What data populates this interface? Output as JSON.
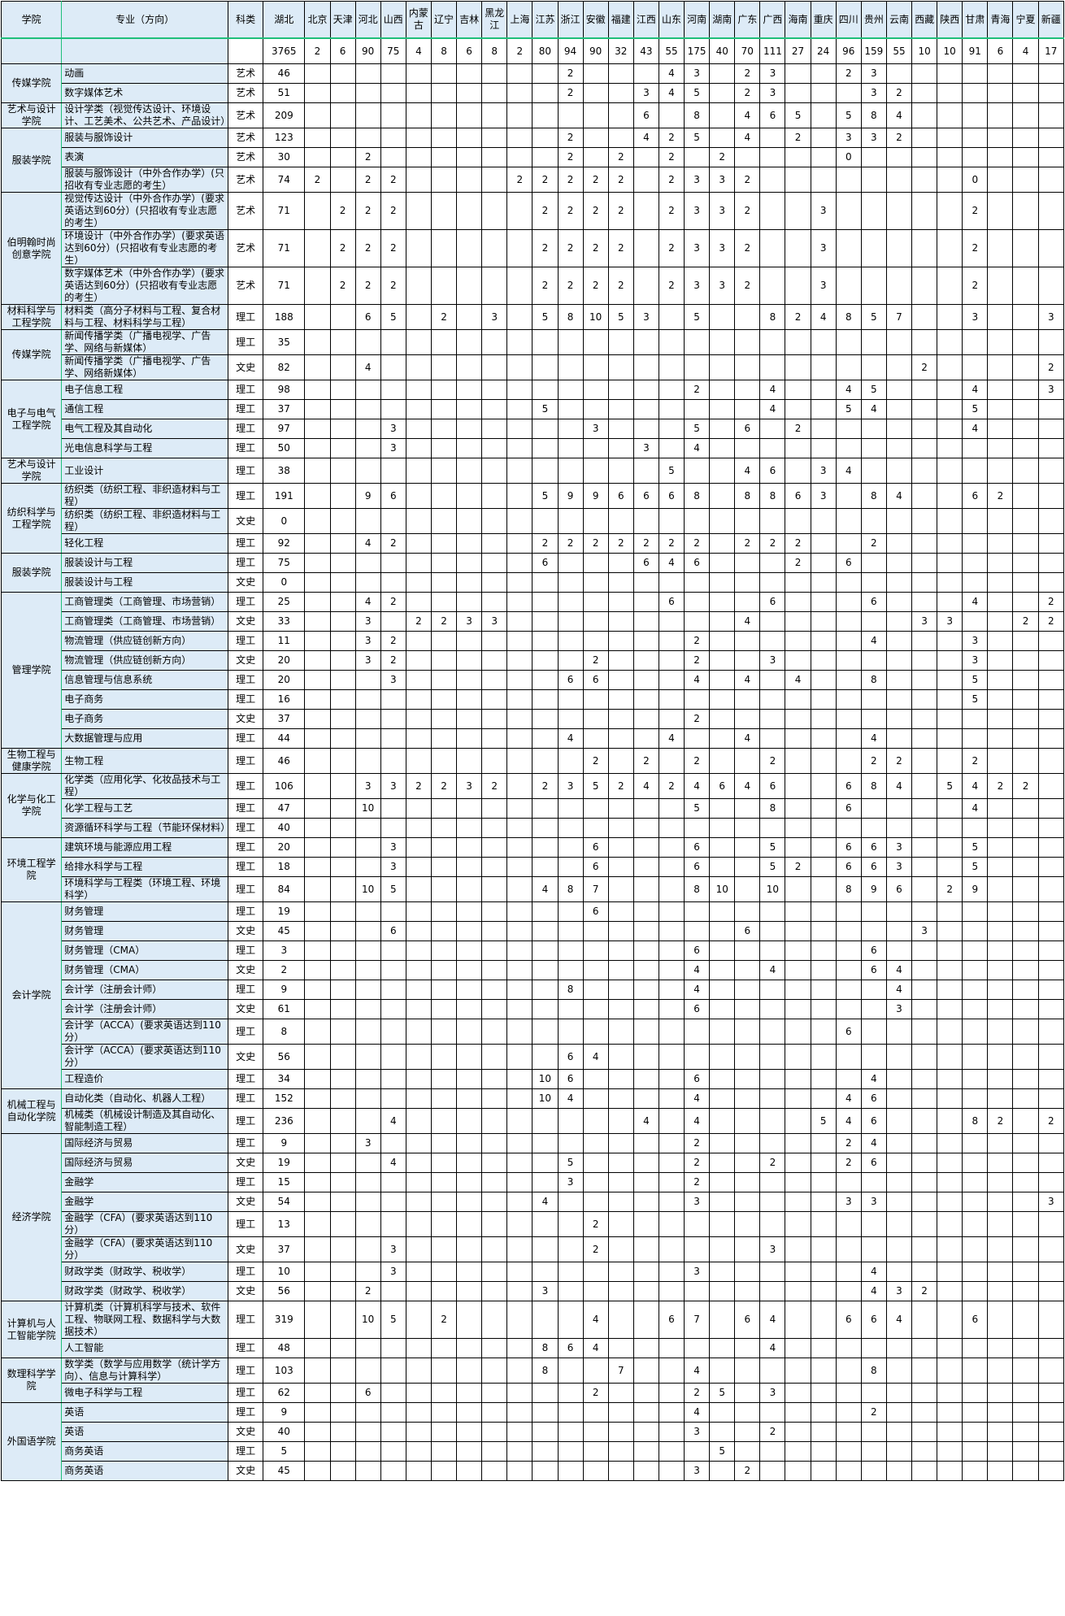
{
  "headers": {
    "college": "学院",
    "major": "专业（方向）",
    "type": "科类",
    "hubei": "湖北"
  },
  "provinces": [
    "北京",
    "天津",
    "河北",
    "山西",
    "内蒙古",
    "辽宁",
    "吉林",
    "黑龙江",
    "上海",
    "江苏",
    "浙江",
    "安徽",
    "福建",
    "江西",
    "山东",
    "河南",
    "湖南",
    "广东",
    "广西",
    "海南",
    "重庆",
    "四川",
    "贵州",
    "云南",
    "西藏",
    "陕西",
    "甘肃",
    "青海",
    "宁夏",
    "新疆"
  ],
  "totals": {
    "hubei": "3765",
    "values": {
      "北京": 2,
      "天津": 6,
      "河北": 90,
      "山西": 75,
      "内蒙古": 4,
      "辽宁": 8,
      "吉林": 6,
      "黑龙江": 8,
      "上海": 2,
      "江苏": 80,
      "浙江": 94,
      "安徽": 90,
      "福建": 32,
      "江西": 43,
      "山东": 55,
      "河南": 175,
      "湖南": 40,
      "广东": 70,
      "广西": 111,
      "海南": 27,
      "重庆": 24,
      "四川": 96,
      "贵州": 159,
      "云南": 55,
      "西藏": 10,
      "陕西": 10,
      "甘肃": 91,
      "青海": 6,
      "宁夏": 4,
      "新疆": 17
    }
  },
  "groups": [
    {
      "college": "传媒学院",
      "rows": [
        {
          "major": "动画",
          "type": "艺术",
          "hubei": "46",
          "v": {
            "浙江": 2,
            "山东": 4,
            "河南": 3,
            "广东": 2,
            "广西": 3,
            "四川": 2,
            "贵州": 3
          }
        },
        {
          "major": "数字媒体艺术",
          "type": "艺术",
          "hubei": "51",
          "v": {
            "浙江": 2,
            "江西": 3,
            "山东": 4,
            "河南": 5,
            "广东": 2,
            "广西": 3,
            "贵州": 3,
            "云南": 2
          }
        }
      ]
    },
    {
      "college": "艺术与设计学院",
      "rows": [
        {
          "major": "设计学类（视觉传达设计、环境设计、工艺美术、公共艺术、产品设计）",
          "type": "艺术",
          "hubei": "209",
          "v": {
            "江西": 6,
            "河南": 8,
            "广东": 4,
            "广西": 6,
            "海南": 5,
            "四川": 5,
            "贵州": 8,
            "云南": 4
          }
        }
      ]
    },
    {
      "college": "服装学院",
      "rows": [
        {
          "major": "服装与服饰设计",
          "type": "艺术",
          "hubei": "123",
          "v": {
            "浙江": 2,
            "江西": 4,
            "山东": 2,
            "河南": 5,
            "广东": 4,
            "海南": 2,
            "四川": 3,
            "贵州": 3,
            "云南": 2
          }
        },
        {
          "major": "表演",
          "type": "艺术",
          "hubei": "30",
          "v": {
            "河北": 2,
            "浙江": 2,
            "福建": 2,
            "山东": 2,
            "湖南": 2,
            "四川": 0
          }
        },
        {
          "major": "服装与服饰设计（中外合作办学）(只招收有专业志愿的考生）",
          "type": "艺术",
          "hubei": "74",
          "v": {
            "北京": 2,
            "河北": 2,
            "山西": 2,
            "上海": 2,
            "江苏": 2,
            "浙江": 2,
            "安徽": 2,
            "福建": 2,
            "山东": 2,
            "河南": 3,
            "湖南": 3,
            "广东": 2,
            "甘肃": 0
          }
        }
      ]
    },
    {
      "college": "伯明翰时尚创意学院",
      "rows": [
        {
          "major": "视觉传达设计（中外合作办学）(要求英语达到60分）(只招收有专业志愿的考生）",
          "type": "艺术",
          "hubei": "71",
          "v": {
            "天津": 2,
            "河北": 2,
            "山西": 2,
            "江苏": 2,
            "浙江": 2,
            "安徽": 2,
            "福建": 2,
            "山东": 2,
            "河南": 3,
            "湖南": 3,
            "广东": 2,
            "重庆": 3,
            "甘肃": 2
          }
        },
        {
          "major": "环境设计（中外合作办学）(要求英语达到60分）(只招收有专业志愿的考生）",
          "type": "艺术",
          "hubei": "71",
          "v": {
            "天津": 2,
            "河北": 2,
            "山西": 2,
            "江苏": 2,
            "浙江": 2,
            "安徽": 2,
            "福建": 2,
            "山东": 2,
            "河南": 3,
            "湖南": 3,
            "广东": 2,
            "重庆": 3,
            "甘肃": 2
          }
        },
        {
          "major": "数字媒体艺术（中外合作办学）(要求英语达到60分）(只招收有专业志愿的考生）",
          "type": "艺术",
          "hubei": "71",
          "v": {
            "天津": 2,
            "河北": 2,
            "山西": 2,
            "江苏": 2,
            "浙江": 2,
            "安徽": 2,
            "福建": 2,
            "山东": 2,
            "河南": 3,
            "湖南": 3,
            "广东": 2,
            "重庆": 3,
            "甘肃": 2
          }
        }
      ]
    },
    {
      "college": "材料科学与工程学院",
      "rows": [
        {
          "major": "材料类（高分子材料与工程、复合材料与工程、材料科学与工程）",
          "type": "理工",
          "hubei": "188",
          "v": {
            "河北": 6,
            "山西": 5,
            "辽宁": 2,
            "黑龙江": 3,
            "江苏": 5,
            "浙江": 8,
            "安徽": 10,
            "福建": 5,
            "江西": 3,
            "河南": 5,
            "广西": 8,
            "海南": 2,
            "重庆": 4,
            "四川": 8,
            "贵州": 5,
            "云南": 7,
            "甘肃": 3,
            "新疆": 3
          }
        }
      ]
    },
    {
      "college": "传媒学院",
      "rows": [
        {
          "major": "新闻传播学类（广播电视学、广告学、网络与新媒体）",
          "type": "理工",
          "hubei": "35",
          "v": {}
        },
        {
          "major": "新闻传播学类（广播电视学、广告学、网络新媒体）",
          "type": "文史",
          "hubei": "82",
          "v": {
            "河北": 4,
            "西藏": 2,
            "新疆": 2
          }
        }
      ]
    },
    {
      "college": "电子与电气工程学院",
      "rows": [
        {
          "major": "电子信息工程",
          "type": "理工",
          "hubei": "98",
          "v": {
            "河南": 2,
            "广西": 4,
            "四川": 4,
            "贵州": 5,
            "甘肃": 4,
            "新疆": 3
          }
        },
        {
          "major": "通信工程",
          "type": "理工",
          "hubei": "37",
          "v": {
            "江苏": 5,
            "广西": 4,
            "四川": 5,
            "贵州": 4,
            "甘肃": 5
          }
        },
        {
          "major": "电气工程及其自动化",
          "type": "理工",
          "hubei": "97",
          "v": {
            "山西": 3,
            "安徽": 3,
            "河南": 5,
            "广东": 6,
            "海南": 2,
            "甘肃": 4
          }
        },
        {
          "major": "光电信息科学与工程",
          "type": "理工",
          "hubei": "50",
          "v": {
            "山西": 3,
            "江西": 3,
            "河南": 4
          }
        }
      ]
    },
    {
      "college": "艺术与设计学院",
      "rows": [
        {
          "major": "工业设计",
          "type": "理工",
          "hubei": "38",
          "v": {
            "山东": 5,
            "广东": 4,
            "广西": 6,
            "重庆": 3,
            "四川": 4
          }
        }
      ]
    },
    {
      "college": "纺织科学与工程学院",
      "rows": [
        {
          "major": "纺织类（纺织工程、非织造材料与工程）",
          "type": "理工",
          "hubei": "191",
          "v": {
            "河北": 9,
            "山西": 6,
            "江苏": 5,
            "浙江": 9,
            "安徽": 9,
            "福建": 6,
            "江西": 6,
            "山东": 6,
            "河南": 8,
            "广东": 8,
            "广西": 8,
            "海南": 6,
            "重庆": 3,
            "贵州": 8,
            "云南": 4,
            "甘肃": 6,
            "青海": 2
          }
        },
        {
          "major": "纺织类（纺织工程、非织造材料与工程）",
          "type": "文史",
          "hubei": "0",
          "v": {}
        },
        {
          "major": "轻化工程",
          "type": "理工",
          "hubei": "92",
          "v": {
            "河北": 4,
            "山西": 2,
            "江苏": 2,
            "浙江": 2,
            "安徽": 2,
            "福建": 2,
            "江西": 2,
            "山东": 2,
            "河南": 2,
            "广东": 2,
            "广西": 2,
            "海南": 2,
            "贵州": 2
          }
        }
      ]
    },
    {
      "college": "服装学院",
      "rows": [
        {
          "major": "服装设计与工程",
          "type": "理工",
          "hubei": "75",
          "v": {
            "江苏": 6,
            "江西": 6,
            "山东": 4,
            "河南": 6,
            "海南": 2,
            "四川": 6
          }
        },
        {
          "major": "服装设计与工程",
          "type": "文史",
          "hubei": "0",
          "v": {}
        }
      ]
    },
    {
      "college": "管理学院",
      "rows": [
        {
          "major": "工商管理类（工商管理、市场营销）",
          "type": "理工",
          "hubei": "25",
          "v": {
            "河北": 4,
            "山西": 2,
            "山东": 6,
            "广西": 6,
            "贵州": 6,
            "甘肃": 4,
            "新疆": 2
          }
        },
        {
          "major": "工商管理类（工商管理、市场营销）",
          "type": "文史",
          "hubei": "33",
          "v": {
            "河北": 3,
            "内蒙古": 2,
            "辽宁": 2,
            "吉林": 3,
            "黑龙江": 3,
            "广东": 4,
            "西藏": 3,
            "陕西": 3,
            "宁夏": 2,
            "新疆": 2
          }
        },
        {
          "major": "物流管理（供应链创新方向）",
          "type": "理工",
          "hubei": "11",
          "v": {
            "河北": 3,
            "山西": 2,
            "河南": 2,
            "贵州": 4,
            "甘肃": 3
          }
        },
        {
          "major": "物流管理（供应链创新方向）",
          "type": "文史",
          "hubei": "20",
          "v": {
            "河北": 3,
            "山西": 2,
            "安徽": 2,
            "河南": 2,
            "广西": 3,
            "甘肃": 3
          }
        },
        {
          "major": "信息管理与信息系统",
          "type": "理工",
          "hubei": "20",
          "v": {
            "山西": 3,
            "浙江": 6,
            "安徽": 6,
            "河南": 4,
            "广东": 4,
            "海南": 4,
            "贵州": 8,
            "甘肃": 5
          }
        },
        {
          "major": "电子商务",
          "type": "理工",
          "hubei": "16",
          "v": {
            "甘肃": 5
          }
        },
        {
          "major": "电子商务",
          "type": "文史",
          "hubei": "37",
          "v": {
            "河南": 2
          }
        },
        {
          "major": "大数据管理与应用",
          "type": "理工",
          "hubei": "44",
          "v": {
            "浙江": 4,
            "山东": 4,
            "广东": 4,
            "贵州": 4
          }
        }
      ]
    },
    {
      "college": "生物工程与健康学院",
      "rows": [
        {
          "major": "生物工程",
          "type": "理工",
          "hubei": "46",
          "v": {
            "安徽": 2,
            "江西": 2,
            "河南": 2,
            "广西": 2,
            "贵州": 2,
            "云南": 2,
            "甘肃": 2
          }
        }
      ]
    },
    {
      "college": "化学与化工学院",
      "rows": [
        {
          "major": "化学类（应用化学、化妆品技术与工程）",
          "type": "理工",
          "hubei": "106",
          "v": {
            "河北": 3,
            "山西": 3,
            "内蒙古": 2,
            "辽宁": 2,
            "吉林": 3,
            "黑龙江": 2,
            "江苏": 2,
            "浙江": 3,
            "安徽": 5,
            "福建": 2,
            "江西": 4,
            "山东": 2,
            "河南": 4,
            "湖南": 6,
            "广东": 4,
            "广西": 6,
            "四川": 6,
            "贵州": 8,
            "云南": 4,
            "陕西": 5,
            "甘肃": 4,
            "青海": 2,
            "宁夏": 2
          }
        },
        {
          "major": "化学工程与工艺",
          "type": "理工",
          "hubei": "47",
          "v": {
            "河北": 10,
            "河南": 5,
            "广西": 8,
            "四川": 6,
            "甘肃": 4
          }
        },
        {
          "major": "资源循环科学与工程（节能环保材料）",
          "type": "理工",
          "hubei": "40",
          "v": {}
        }
      ]
    },
    {
      "college": "环境工程学院",
      "rows": [
        {
          "major": "建筑环境与能源应用工程",
          "type": "理工",
          "hubei": "20",
          "v": {
            "山西": 3,
            "安徽": 6,
            "河南": 6,
            "广西": 5,
            "四川": 6,
            "贵州": 6,
            "云南": 3,
            "甘肃": 5
          }
        },
        {
          "major": "给排水科学与工程",
          "type": "理工",
          "hubei": "18",
          "v": {
            "山西": 3,
            "安徽": 6,
            "河南": 6,
            "广西": 5,
            "海南": 2,
            "四川": 6,
            "贵州": 6,
            "云南": 3,
            "甘肃": 5
          }
        },
        {
          "major": "环境科学与工程类（环境工程、环境科学）",
          "type": "理工",
          "hubei": "84",
          "v": {
            "河北": 10,
            "山西": 5,
            "江苏": 4,
            "浙江": 8,
            "安徽": 7,
            "河南": 8,
            "湖南": 10,
            "广西": 10,
            "四川": 8,
            "贵州": 9,
            "云南": 6,
            "陕西": 2,
            "甘肃": 9
          }
        }
      ]
    },
    {
      "college": "会计学院",
      "rows": [
        {
          "major": "财务管理",
          "type": "理工",
          "hubei": "19",
          "v": {
            "安徽": 6
          }
        },
        {
          "major": "财务管理",
          "type": "文史",
          "hubei": "45",
          "v": {
            "山西": 6,
            "广东": 6,
            "西藏": 3
          }
        },
        {
          "major": "财务管理（CMA）",
          "type": "理工",
          "hubei": "3",
          "v": {
            "河南": 6,
            "贵州": 6
          }
        },
        {
          "major": "财务管理（CMA）",
          "type": "文史",
          "hubei": "2",
          "v": {
            "河南": 4,
            "广西": 4,
            "贵州": 6,
            "云南": 4
          }
        },
        {
          "major": "会计学（注册会计师）",
          "type": "理工",
          "hubei": "9",
          "v": {
            "浙江": 8,
            "河南": 4,
            "云南": 4
          }
        },
        {
          "major": "会计学（注册会计师）",
          "type": "文史",
          "hubei": "61",
          "v": {
            "河南": 6,
            "云南": 3
          }
        },
        {
          "major": "会计学（ACCA）(要求英语达到110分）",
          "type": "理工",
          "hubei": "8",
          "v": {
            "四川": 6
          }
        },
        {
          "major": "会计学（ACCA）(要求英语达到110分）",
          "type": "文史",
          "hubei": "56",
          "v": {
            "浙江": 6,
            "安徽": 4
          }
        },
        {
          "major": "工程造价",
          "type": "理工",
          "hubei": "34",
          "v": {
            "江苏": 10,
            "浙江": 6,
            "河南": 6,
            "贵州": 4
          }
        }
      ]
    },
    {
      "college": "机械工程与自动化学院",
      "rows": [
        {
          "major": "自动化类（自动化、机器人工程）",
          "type": "理工",
          "hubei": "152",
          "v": {
            "江苏": 10,
            "浙江": 4,
            "河南": 4,
            "四川": 4,
            "贵州": 6
          }
        },
        {
          "major": "机械类（机械设计制造及其自动化、智能制造工程）",
          "type": "理工",
          "hubei": "236",
          "v": {
            "山西": 4,
            "江西": 4,
            "河南": 4,
            "重庆": 5,
            "四川": 4,
            "贵州": 6,
            "甘肃": 8,
            "青海": 2,
            "新疆": 2
          }
        }
      ]
    },
    {
      "college": "经济学院",
      "rows": [
        {
          "major": "国际经济与贸易",
          "type": "理工",
          "hubei": "9",
          "v": {
            "河北": 3,
            "河南": 2,
            "四川": 2,
            "贵州": 4
          }
        },
        {
          "major": "国际经济与贸易",
          "type": "文史",
          "hubei": "19",
          "v": {
            "山西": 4,
            "浙江": 5,
            "河南": 2,
            "广西": 2,
            "四川": 2,
            "贵州": 6
          }
        },
        {
          "major": "金融学",
          "type": "理工",
          "hubei": "15",
          "v": {
            "浙江": 3,
            "河南": 2
          }
        },
        {
          "major": "金融学",
          "type": "文史",
          "hubei": "54",
          "v": {
            "江苏": 4,
            "河南": 3,
            "四川": 3,
            "贵州": 3,
            "新疆": 3
          }
        },
        {
          "major": "金融学（CFA）(要求英语达到110分）",
          "type": "理工",
          "hubei": "13",
          "v": {
            "安徽": 2
          }
        },
        {
          "major": "金融学（CFA）(要求英语达到110分）",
          "type": "文史",
          "hubei": "37",
          "v": {
            "山西": 3,
            "安徽": 2,
            "广西": 3
          }
        },
        {
          "major": "财政学类（财政学、税收学）",
          "type": "理工",
          "hubei": "10",
          "v": {
            "山西": 3,
            "河南": 3,
            "贵州": 4
          }
        },
        {
          "major": "财政学类（财政学、税收学）",
          "type": "文史",
          "hubei": "56",
          "v": {
            "河北": 2,
            "江苏": 3,
            "贵州": 4,
            "云南": 3,
            "西藏": 2
          }
        }
      ]
    },
    {
      "college": "计算机与人工智能学院",
      "rows": [
        {
          "major": "计算机类（计算机科学与技术、软件工程、物联网工程、数据科学与大数据技术）",
          "type": "理工",
          "hubei": "319",
          "v": {
            "河北": 10,
            "山西": 5,
            "辽宁": 2,
            "安徽": 4,
            "山东": 6,
            "河南": 7,
            "广东": 6,
            "广西": 4,
            "四川": 6,
            "贵州": 6,
            "云南": 4,
            "甘肃": 6
          }
        },
        {
          "major": "人工智能",
          "type": "理工",
          "hubei": "48",
          "v": {
            "江苏": 8,
            "浙江": 6,
            "安徽": 4,
            "广西": 4
          }
        }
      ]
    },
    {
      "college": "数理科学学院",
      "rows": [
        {
          "major": "数学类（数学与应用数学（统计学方向）、信息与计算科学）",
          "type": "理工",
          "hubei": "103",
          "v": {
            "江苏": 8,
            "福建": 7,
            "河南": 4,
            "贵州": 8
          }
        },
        {
          "major": "微电子科学与工程",
          "type": "理工",
          "hubei": "62",
          "v": {
            "河北": 6,
            "安徽": 2,
            "河南": 2,
            "湖南": 5,
            "广西": 3
          }
        }
      ]
    },
    {
      "college": "外国语学院",
      "rows": [
        {
          "major": "英语",
          "type": "理工",
          "hubei": "9",
          "v": {
            "河南": 4,
            "贵州": 2
          }
        },
        {
          "major": "英语",
          "type": "文史",
          "hubei": "40",
          "v": {
            "河南": 3,
            "广西": 2
          }
        },
        {
          "major": "商务英语",
          "type": "理工",
          "hubei": "5",
          "v": {
            "湖南": 5
          }
        },
        {
          "major": "商务英语",
          "type": "文史",
          "hubei": "45",
          "v": {
            "河南": 3,
            "广东": 2
          }
        }
      ]
    }
  ]
}
